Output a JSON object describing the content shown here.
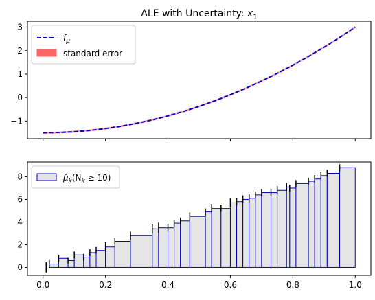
{
  "chart_data": [
    {
      "type": "line",
      "title": "ALE with Uncertainty: x₁",
      "title_prefix": "ALE with Uncertainty: ",
      "title_var": "x",
      "title_sub": "1",
      "xlim": [
        -0.05,
        1.05
      ],
      "ylim": [
        -1.75,
        3.25
      ],
      "x_ticks": [
        0.0,
        0.2,
        0.4,
        0.6,
        0.8,
        1.0
      ],
      "x_tick_labels_visible": false,
      "y_ticks": [
        -1,
        0,
        1,
        2,
        3
      ],
      "y_tick_labels": [
        "−1",
        "0",
        "1",
        "2",
        "3"
      ],
      "grid": false,
      "legend_position": "top-left",
      "legend": [
        {
          "label_main": "f",
          "label_sub": "μ",
          "color": "#0000cc",
          "style": "dashed-line"
        },
        {
          "label": "standard error",
          "color": "#ff6666",
          "style": "filled-patch"
        }
      ],
      "series": [
        {
          "name": "f_μ",
          "color": "#0000cc",
          "x": [
            0,
            0.05,
            0.1,
            0.15,
            0.2,
            0.25,
            0.3,
            0.35,
            0.4,
            0.45,
            0.5,
            0.55,
            0.6,
            0.65,
            0.7,
            0.75,
            0.8,
            0.85,
            0.9,
            0.95,
            1.0
          ],
          "y": [
            -1.5,
            -1.489,
            -1.455,
            -1.399,
            -1.32,
            -1.219,
            -1.095,
            -0.949,
            -0.78,
            -0.589,
            -0.375,
            -0.139,
            0.12,
            0.401,
            0.705,
            1.031,
            1.38,
            1.751,
            2.145,
            2.561,
            3.0
          ]
        }
      ],
      "error_band": {
        "name": "standard error",
        "color": "#ff6666",
        "halfwidth": 0.04
      }
    },
    {
      "type": "bar",
      "xlim": [
        -0.05,
        1.05
      ],
      "ylim": [
        -0.7,
        9.3
      ],
      "x_ticks": [
        0.0,
        0.2,
        0.4,
        0.6,
        0.8,
        1.0
      ],
      "x_tick_labels": [
        "0.0",
        "0.2",
        "0.4",
        "0.6",
        "0.8",
        "1.0"
      ],
      "y_ticks": [
        0,
        2,
        4,
        6,
        8
      ],
      "y_tick_labels": [
        "0",
        "2",
        "4",
        "6",
        "8"
      ],
      "grid": false,
      "legend_position": "top-left",
      "legend": [
        {
          "label": "μ̂k(Nk ≥ 10)",
          "label_mu": "μ̂",
          "label_k": "k",
          "label_mid": "(N",
          "label_k2": "k",
          "label_end": " ≥ 10)",
          "fill": "#e5e5e5",
          "edge": "#0000cc"
        }
      ],
      "bin_edges": [
        0.01,
        0.02,
        0.05,
        0.08,
        0.1,
        0.13,
        0.15,
        0.17,
        0.2,
        0.23,
        0.28,
        0.35,
        0.37,
        0.4,
        0.42,
        0.44,
        0.47,
        0.52,
        0.54,
        0.57,
        0.6,
        0.62,
        0.64,
        0.66,
        0.68,
        0.7,
        0.73,
        0.75,
        0.78,
        0.79,
        0.81,
        0.85,
        0.87,
        0.89,
        0.91,
        0.95,
        1.0
      ],
      "values": [
        0.0,
        0.3,
        0.8,
        0.6,
        1.1,
        0.9,
        1.3,
        1.5,
        1.8,
        2.3,
        2.8,
        3.4,
        3.5,
        3.5,
        3.9,
        4.1,
        4.5,
        4.9,
        5.2,
        5.2,
        5.7,
        5.8,
        6.0,
        6.1,
        6.4,
        6.6,
        6.6,
        6.8,
        7.1,
        7.0,
        7.4,
        7.6,
        7.8,
        8.1,
        8.3,
        8.8
      ],
      "error": [
        0.45,
        0.35,
        0.3,
        0.25,
        0.3,
        0.3,
        0.3,
        0.3,
        0.45,
        0.3,
        0.35,
        0.4,
        0.45,
        0.35,
        0.3,
        0.3,
        0.35,
        0.3,
        0.4,
        0.3,
        0.4,
        0.35,
        0.35,
        0.35,
        0.3,
        0.3,
        0.35,
        0.35,
        0.35,
        0.3,
        0.3,
        0.3,
        0.35,
        0.35,
        0.3,
        0.3
      ],
      "bar_fill": "#e5e5e5",
      "bar_edge": "#0000cc",
      "errorbar_color": "#000000"
    }
  ]
}
